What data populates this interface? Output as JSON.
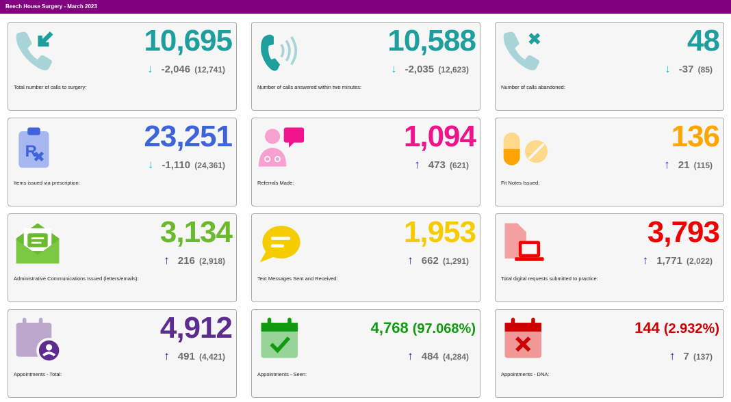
{
  "header": {
    "title": "Beech House Surgery - March 2023"
  },
  "colors": {
    "down_arrow": "#22c0e0",
    "up_arrow": "#1a1ad0",
    "delta_text": "#6e6e6e",
    "header_bg": "#800080"
  },
  "cards": [
    {
      "icon": "phone-incoming-icon",
      "value": "10,695",
      "color": "#1f9e9e",
      "direction": "down",
      "delta": "-2,046",
      "prev": "(12,741)",
      "label": "Total number of calls to surgery:"
    },
    {
      "icon": "phone-ringing-icon",
      "value": "10,588",
      "color": "#1f9e9e",
      "direction": "down",
      "delta": "-2,035",
      "prev": "(12,623)",
      "label": "Number of calls answered within two minutes:"
    },
    {
      "icon": "phone-missed-icon",
      "value": "48",
      "color": "#1f9e9e",
      "direction": "down",
      "delta": "-37",
      "prev": "(85)",
      "label": "Number of calls abandoned:"
    },
    {
      "icon": "prescription-icon",
      "value": "23,251",
      "color": "#3f63d8",
      "direction": "down",
      "delta": "-1,110",
      "prev": "(24,361)",
      "label": "Items issued via prescription:"
    },
    {
      "icon": "doctor-chat-icon",
      "value": "1,094",
      "color": "#f0148c",
      "direction": "up",
      "delta": "473",
      "prev": "(621)",
      "label": "Referrals Made:"
    },
    {
      "icon": "pills-icon",
      "value": "136",
      "color": "#ffa500",
      "direction": "up",
      "delta": "21",
      "prev": "(115)",
      "label": "Fit Notes Issued:"
    },
    {
      "icon": "envelope-icon",
      "value": "3,134",
      "color": "#6ab92e",
      "direction": "up",
      "delta": "216",
      "prev": "(2,918)",
      "label": "Administrative Communications Issued (letters/emails):"
    },
    {
      "icon": "speech-bubble-icon",
      "value": "1,953",
      "color": "#f5cc00",
      "direction": "up",
      "delta": "662",
      "prev": "(1,291)",
      "label": "Text Messages Sent and Received:"
    },
    {
      "icon": "digital-request-icon",
      "value": "3,793",
      "color": "#ee0000",
      "direction": "up",
      "delta": "1,771",
      "prev": "(2,022)",
      "label": "Total digital requests submitted to practice:"
    },
    {
      "icon": "calendar-user-icon",
      "value": "4,912",
      "color": "#5c2d8e",
      "direction": "up",
      "delta": "491",
      "prev": "(4,421)",
      "label": "Appointments - Total:"
    },
    {
      "icon": "calendar-check-icon",
      "value": "4,768",
      "percent": "(97.068%)",
      "color": "#129912",
      "direction": "up",
      "delta": "484",
      "prev": "(4,284)",
      "label": "Appointments - Seen:"
    },
    {
      "icon": "calendar-cross-icon",
      "value": "144",
      "percent": "(2.932%)",
      "color": "#cc0000",
      "direction": "up",
      "delta": "7",
      "prev": "(137)",
      "label": "Appointments - DNA:"
    }
  ]
}
